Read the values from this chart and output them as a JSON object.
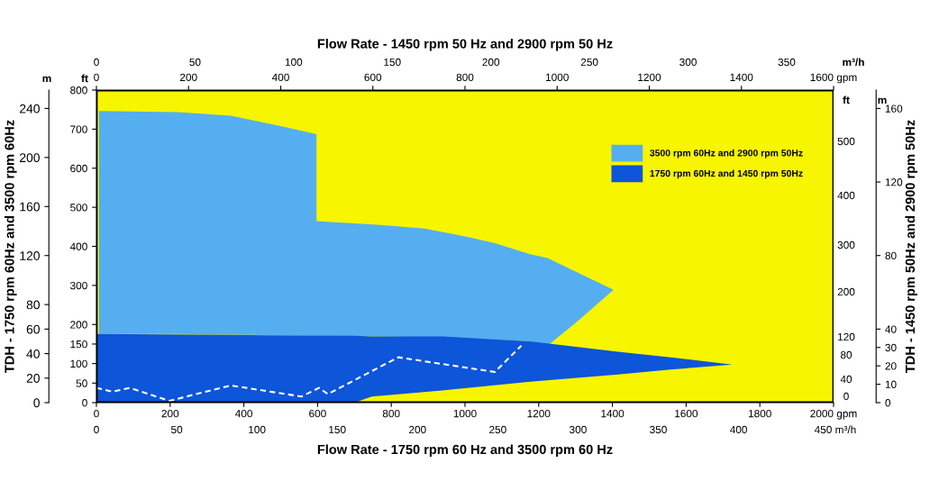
{
  "chart_data": {
    "type": "area",
    "xlabel": "Flow Rate - 1750 rpm 60 Hz and 3500 rpm 60 Hz",
    "x2label": "Flow Rate - 1450 rpm 50 Hz and 2900 rpm 50 Hz",
    "ylabel": "TDH - 1750 rpm 60Hz and 3500 rpm 60Hz",
    "y3label": "TDH - 1450 rpm 50Hz and 2900 rpm 50Hz",
    "annotations": [
      "m",
      "ft",
      "ft",
      "m",
      "m³/h",
      "0",
      "50",
      "100",
      "150",
      "200",
      "250",
      "300",
      "350",
      "0",
      "50",
      "100",
      "150",
      "200",
      "250",
      "300",
      "350",
      "400",
      "450 m³/h",
      "0",
      "40",
      "80",
      "120",
      "200",
      "300",
      "400",
      "500"
    ],
    "xlim": [
      0,
      2000
    ],
    "xticks": [
      0,
      200,
      400,
      600,
      800,
      1000,
      1200,
      1400,
      1600,
      1800,
      {
        "value": 2000,
        "label": "2000 gpm"
      }
    ],
    "x2lim": [
      0,
      1600
    ],
    "x2ticks": [
      0,
      200,
      400,
      600,
      800,
      1000,
      1200,
      1400,
      {
        "value": 1600,
        "label": "1600 gpm"
      }
    ],
    "ylim": [
      0,
      255
    ],
    "yticks": [
      0,
      20,
      40,
      60,
      80,
      120,
      160,
      200,
      240
    ],
    "y2lim": [
      0,
      800
    ],
    "y2ticks": [
      0,
      50,
      100,
      150,
      200,
      300,
      400,
      500,
      600,
      700,
      800
    ],
    "y3lim": [
      0,
      170
    ],
    "y3ticks": [
      0,
      10,
      20,
      30,
      40,
      80,
      120,
      160
    ],
    "grid": false,
    "legend": "top right",
    "series": [
      {
        "name": "3500 rpm 60Hz and 2900 rpm 50Hz",
        "color": "#55aef0",
        "x": [
          7,
          222,
          365,
          508,
          597,
          597,
          771,
          890,
          1010,
          1081,
          1177,
          1224,
          1300,
          1403,
          1300,
          1224,
          1177,
          1081,
          1010,
          890,
          771,
          597,
          508,
          365,
          222,
          7
        ],
        "values": [
          238,
          237,
          234,
          225,
          219,
          148,
          145,
          142,
          135,
          130,
          121,
          118,
          107,
          92,
          65,
          46.5,
          50,
          51.5,
          52,
          53.5,
          54,
          54.5,
          55,
          55.5,
          56,
          56
        ]
      },
      {
        "name": "1750 rpm 60Hz and 1450 rpm 50Hz",
        "color": "#0d55d9",
        "x": [
          0,
          461,
          700,
          747,
          938,
          1177,
          1415,
          1558,
          1725,
          1558,
          1415,
          1177,
          938,
          747,
          700,
          461,
          0
        ],
        "values": [
          56,
          55,
          54.5,
          54,
          54,
          50,
          41.5,
          37,
          31,
          27,
          23,
          17,
          10,
          5,
          0,
          0,
          0
        ]
      },
      {
        "type": "line",
        "color": "#ffffff",
        "line_style": "dashed",
        "x": [
          0,
          43,
          91,
          198,
          365,
          556,
          604,
          628,
          819,
          1081,
          1153
        ],
        "values": [
          12,
          9,
          12,
          1.5,
          14,
          5,
          12,
          7,
          37,
          25,
          46.5
        ]
      }
    ]
  }
}
